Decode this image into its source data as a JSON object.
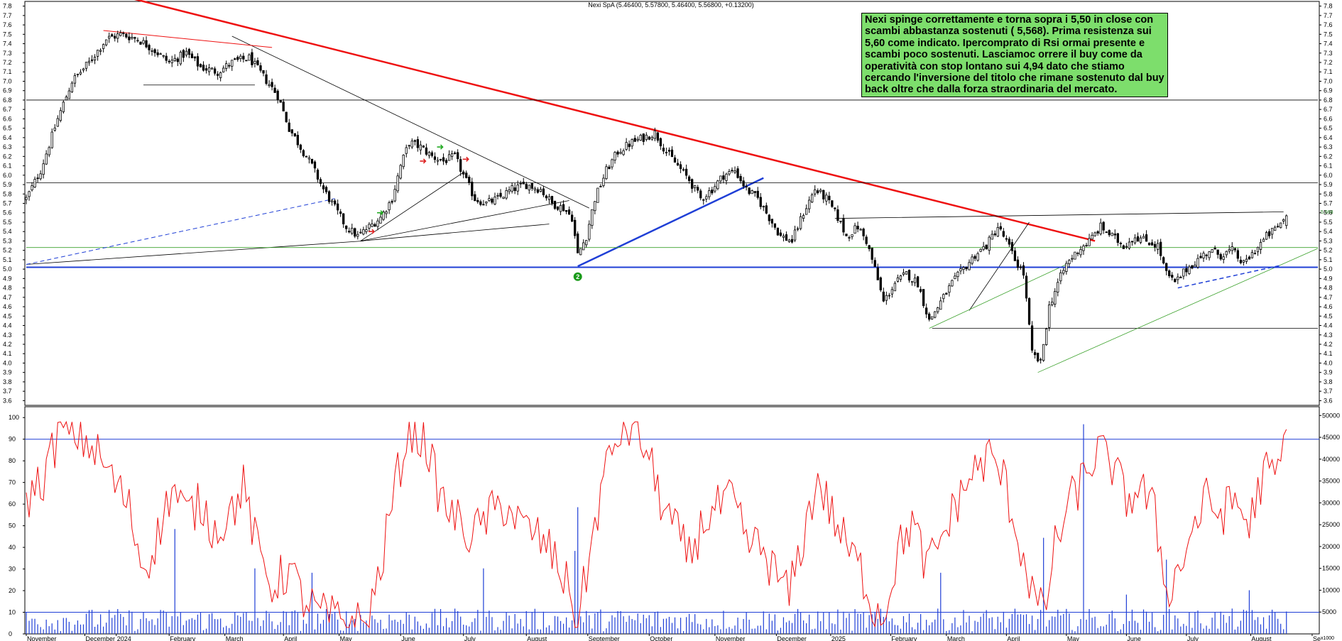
{
  "chart_data": {
    "type": "candlestick",
    "title": "Nexi SpA (5.46400, 5.57800, 5.46400, 5.56800, +0.13200)",
    "annotation": "Nexi spinge correttamente e torna sopra i 5,50 in close con scambi abbastanza sostenuti ( 5,568). Prima resistenza sui 5,60 come indicato. Ipercomprato di Rsi ormai presente e scambi poco sostenuti. Lasciamoc orrere il buy come da operatività con stop lontano sui 4,94 dato che stiamo cercando l'inversione del titolo che rimane sostenuto dal buy back oltre che dalla forza straordinaria del mercato.",
    "marker": "2",
    "last_price_label": "5.568",
    "price_axis": {
      "ylim": [
        3.55,
        7.85
      ],
      "ticks": [
        "3.6",
        "3.7",
        "3.8",
        "3.9",
        "4.0",
        "4.1",
        "4.2",
        "4.3",
        "4.4",
        "4.5",
        "4.6",
        "4.7",
        "4.8",
        "4.9",
        "5.0",
        "5.1",
        "5.2",
        "5.3",
        "5.4",
        "5.5",
        "5.6",
        "5.7",
        "5.8",
        "5.9",
        "6.0",
        "6.1",
        "6.2",
        "6.3",
        "6.4",
        "6.5",
        "6.6",
        "6.7",
        "6.8",
        "6.9",
        "7.0",
        "7.1",
        "7.2",
        "7.3",
        "7.4",
        "7.5",
        "7.6",
        "7.7",
        "7.8"
      ]
    },
    "rsi_axis": {
      "ylim": [
        0,
        105
      ],
      "ticks": [
        "0",
        "10",
        "20",
        "30",
        "40",
        "50",
        "60",
        "70",
        "80",
        "90",
        "100"
      ]
    },
    "volume_axis": {
      "ylim": [
        0,
        52000
      ],
      "ticks": [
        "50000",
        "45000",
        "40000",
        "35000",
        "30000",
        "25000",
        "20000",
        "15000",
        "10000",
        "5000"
      ],
      "unit_label": "x1000"
    },
    "x_labels": [
      "November",
      "December",
      "2024",
      "February",
      "March",
      "April",
      "May",
      "June",
      "July",
      "August",
      "September",
      "October",
      "November",
      "December",
      "2025",
      "February",
      "March",
      "April",
      "May",
      "June",
      "July",
      "August",
      "Se"
    ],
    "price_anchors": [
      [
        0,
        5.75
      ],
      [
        5,
        6.05
      ],
      [
        11,
        6.6
      ],
      [
        16,
        7.0
      ],
      [
        22,
        7.2
      ],
      [
        28,
        7.45
      ],
      [
        33,
        7.5
      ],
      [
        39,
        7.45
      ],
      [
        44,
        7.35
      ],
      [
        50,
        7.2
      ],
      [
        56,
        7.3
      ],
      [
        61,
        7.15
      ],
      [
        67,
        7.1
      ],
      [
        72,
        7.2
      ],
      [
        78,
        7.25
      ],
      [
        83,
        7.05
      ],
      [
        88,
        6.85
      ],
      [
        92,
        6.5
      ],
      [
        96,
        6.3
      ],
      [
        100,
        6.1
      ],
      [
        104,
        5.85
      ],
      [
        108,
        5.65
      ],
      [
        112,
        5.45
      ],
      [
        116,
        5.35
      ],
      [
        120,
        5.45
      ],
      [
        124,
        5.55
      ],
      [
        128,
        5.75
      ],
      [
        131,
        6.1
      ],
      [
        134,
        6.35
      ],
      [
        138,
        6.3
      ],
      [
        142,
        6.2
      ],
      [
        146,
        6.15
      ],
      [
        150,
        6.2
      ],
      [
        153,
        6.0
      ],
      [
        157,
        5.75
      ],
      [
        161,
        5.7
      ],
      [
        165,
        5.75
      ],
      [
        170,
        5.85
      ],
      [
        175,
        5.9
      ],
      [
        180,
        5.85
      ],
      [
        184,
        5.7
      ],
      [
        188,
        5.65
      ],
      [
        191,
        5.55
      ],
      [
        193,
        5.15
      ],
      [
        196,
        5.35
      ],
      [
        199,
        5.75
      ],
      [
        203,
        6.05
      ],
      [
        207,
        6.25
      ],
      [
        212,
        6.35
      ],
      [
        216,
        6.4
      ],
      [
        220,
        6.45
      ],
      [
        224,
        6.25
      ],
      [
        228,
        6.1
      ],
      [
        232,
        5.95
      ],
      [
        236,
        5.75
      ],
      [
        240,
        5.85
      ],
      [
        244,
        6.0
      ],
      [
        248,
        6.05
      ],
      [
        252,
        5.85
      ],
      [
        256,
        5.75
      ],
      [
        260,
        5.55
      ],
      [
        264,
        5.35
      ],
      [
        268,
        5.3
      ],
      [
        272,
        5.6
      ],
      [
        276,
        5.85
      ],
      [
        280,
        5.75
      ],
      [
        284,
        5.55
      ],
      [
        287,
        5.35
      ],
      [
        291,
        5.45
      ],
      [
        294,
        5.3
      ],
      [
        297,
        5.0
      ],
      [
        300,
        4.65
      ],
      [
        304,
        4.85
      ],
      [
        308,
        4.95
      ],
      [
        312,
        4.85
      ],
      [
        316,
        4.45
      ],
      [
        320,
        4.65
      ],
      [
        324,
        4.85
      ],
      [
        328,
        5.0
      ],
      [
        332,
        5.15
      ],
      [
        336,
        5.25
      ],
      [
        340,
        5.45
      ],
      [
        343,
        5.3
      ],
      [
        346,
        5.1
      ],
      [
        349,
        4.95
      ],
      [
        352,
        4.1
      ],
      [
        355,
        4.0
      ],
      [
        358,
        4.6
      ],
      [
        361,
        4.85
      ],
      [
        364,
        5.05
      ],
      [
        368,
        5.2
      ],
      [
        372,
        5.3
      ],
      [
        376,
        5.45
      ],
      [
        380,
        5.35
      ],
      [
        384,
        5.25
      ],
      [
        388,
        5.35
      ],
      [
        392,
        5.3
      ],
      [
        396,
        5.25
      ],
      [
        399,
        4.95
      ],
      [
        402,
        4.85
      ],
      [
        406,
        5.0
      ],
      [
        410,
        5.1
      ],
      [
        414,
        5.2
      ],
      [
        418,
        5.15
      ],
      [
        422,
        5.2
      ],
      [
        426,
        5.05
      ],
      [
        430,
        5.2
      ],
      [
        434,
        5.35
      ],
      [
        438,
        5.45
      ],
      [
        441,
        5.568
      ]
    ],
    "lines": [
      {
        "name": "red-downtrend",
        "color": "#ee1111",
        "width": 2.5,
        "points": [
          [
            28,
            7.95
          ],
          [
            374,
            5.3
          ]
        ]
      },
      {
        "name": "black-downtrend",
        "color": "#000000",
        "width": 0.8,
        "points": [
          [
            72,
            7.48
          ],
          [
            197,
            5.65
          ]
        ]
      },
      {
        "name": "red-short-trend",
        "color": "#ee1111",
        "width": 1,
        "points": [
          [
            27,
            7.54
          ],
          [
            86,
            7.36
          ]
        ]
      },
      {
        "name": "double-top-base",
        "color": "#000000",
        "width": 0.8,
        "points": [
          [
            41,
            6.96
          ],
          [
            80,
            6.96
          ]
        ]
      },
      {
        "name": "long-support-2023",
        "color": "#000000",
        "width": 0.8,
        "points": [
          [
            0,
            5.05
          ],
          [
            118,
            5.3
          ]
        ]
      },
      {
        "name": "fan-1",
        "color": "#000000",
        "width": 0.8,
        "points": [
          [
            117,
            5.3
          ],
          [
            183,
            5.48
          ]
        ]
      },
      {
        "name": "fan-2",
        "color": "#000000",
        "width": 0.8,
        "points": [
          [
            117,
            5.3
          ],
          [
            190,
            5.73
          ]
        ]
      },
      {
        "name": "fan-3",
        "color": "#000000",
        "width": 0.8,
        "points": [
          [
            117,
            5.3
          ],
          [
            153,
            6.03
          ]
        ]
      },
      {
        "name": "blue-rising-trend",
        "color": "#1f3fd6",
        "width": 2.5,
        "points": [
          [
            193,
            5.03
          ],
          [
            258,
            5.97
          ]
        ]
      },
      {
        "name": "resistance-5.55",
        "color": "#000000",
        "width": 0.8,
        "points": [
          [
            283,
            5.54
          ],
          [
            440,
            5.61
          ]
        ]
      },
      {
        "name": "support-4.37",
        "color": "#000000",
        "width": 0.8,
        "points": [
          [
            317,
            4.37
          ],
          [
            452,
            4.37
          ]
        ]
      },
      {
        "name": "feb-up-line",
        "color": "#000000",
        "width": 0.8,
        "points": [
          [
            330,
            4.56
          ],
          [
            351,
            5.5
          ]
        ]
      },
      {
        "name": "green-feb-trend",
        "color": "#3aa12a",
        "width": 0.8,
        "points": [
          [
            316,
            4.37
          ],
          [
            364,
            5.05
          ]
        ]
      },
      {
        "name": "green-apr-trend",
        "color": "#3aa12a",
        "width": 0.8,
        "points": [
          [
            354,
            3.9
          ],
          [
            452,
            5.22
          ]
        ]
      },
      {
        "name": "hline-6.8",
        "color": "#000000",
        "width": 0.8,
        "points": [
          [
            0,
            6.8
          ],
          [
            452,
            6.8
          ]
        ]
      },
      {
        "name": "hline-5.92",
        "color": "#000000",
        "width": 0.8,
        "points": [
          [
            0,
            5.92
          ],
          [
            452,
            5.92
          ]
        ]
      },
      {
        "name": "green-hline-5.23",
        "color": "#3aa12a",
        "width": 0.8,
        "points": [
          [
            0,
            5.23
          ],
          [
            452,
            5.23
          ]
        ]
      },
      {
        "name": "blue-hline-5.02",
        "color": "#1f3fd6",
        "width": 2,
        "points": [
          [
            0,
            5.02
          ],
          [
            452,
            5.02
          ]
        ]
      },
      {
        "name": "blue-dashed-2023",
        "color": "#1f3fd6",
        "width": 1,
        "dash": true,
        "points": [
          [
            0,
            5.05
          ],
          [
            108,
            5.75
          ]
        ]
      },
      {
        "name": "blue-dashed-2025",
        "color": "#1f3fd6",
        "width": 1.5,
        "dash": true,
        "points": [
          [
            403,
            4.8
          ],
          [
            439,
            5.04
          ]
        ]
      }
    ],
    "rsi": {
      "upper_level": 90,
      "lower_level": 10,
      "anchors": [
        [
          0,
          62
        ],
        [
          6,
          72
        ],
        [
          12,
          95
        ],
        [
          18,
          92
        ],
        [
          24,
          85
        ],
        [
          30,
          72
        ],
        [
          36,
          58
        ],
        [
          41,
          30
        ],
        [
          46,
          45
        ],
        [
          51,
          68
        ],
        [
          56,
          55
        ],
        [
          61,
          60
        ],
        [
          66,
          48
        ],
        [
          71,
          55
        ],
        [
          76,
          68
        ],
        [
          81,
          38
        ],
        [
          86,
          22
        ],
        [
          92,
          30
        ],
        [
          97,
          16
        ],
        [
          102,
          10
        ],
        [
          108,
          7
        ],
        [
          114,
          6
        ],
        [
          119,
          4
        ],
        [
          124,
          30
        ],
        [
          129,
          68
        ],
        [
          134,
          95
        ],
        [
          140,
          88
        ],
        [
          145,
          62
        ],
        [
          151,
          52
        ],
        [
          156,
          45
        ],
        [
          162,
          55
        ],
        [
          168,
          60
        ],
        [
          173,
          50
        ],
        [
          179,
          45
        ],
        [
          185,
          35
        ],
        [
          190,
          20
        ],
        [
          193,
          6
        ],
        [
          197,
          35
        ],
        [
          202,
          72
        ],
        [
          207,
          92
        ],
        [
          212,
          96
        ],
        [
          217,
          85
        ],
        [
          222,
          62
        ],
        [
          227,
          48
        ],
        [
          232,
          35
        ],
        [
          237,
          52
        ],
        [
          242,
          58
        ],
        [
          247,
          62
        ],
        [
          252,
          42
        ],
        [
          257,
          40
        ],
        [
          262,
          28
        ],
        [
          267,
          18
        ],
        [
          272,
          45
        ],
        [
          277,
          72
        ],
        [
          282,
          55
        ],
        [
          288,
          38
        ],
        [
          292,
          30
        ],
        [
          296,
          14
        ],
        [
          300,
          8
        ],
        [
          305,
          38
        ],
        [
          310,
          52
        ],
        [
          315,
          30
        ],
        [
          321,
          46
        ],
        [
          326,
          62
        ],
        [
          331,
          74
        ],
        [
          337,
          82
        ],
        [
          342,
          72
        ],
        [
          347,
          45
        ],
        [
          352,
          20
        ],
        [
          356,
          8
        ],
        [
          360,
          40
        ],
        [
          365,
          60
        ],
        [
          370,
          72
        ],
        [
          375,
          85
        ],
        [
          380,
          78
        ],
        [
          385,
          62
        ],
        [
          390,
          68
        ],
        [
          395,
          55
        ],
        [
          399,
          20
        ],
        [
          403,
          28
        ],
        [
          408,
          48
        ],
        [
          413,
          62
        ],
        [
          418,
          55
        ],
        [
          423,
          62
        ],
        [
          428,
          50
        ],
        [
          433,
          75
        ],
        [
          437,
          72
        ],
        [
          441,
          90
        ]
      ]
    },
    "volume_spikes": [
      [
        52,
        24000
      ],
      [
        80,
        15000
      ],
      [
        100,
        14000
      ],
      [
        160,
        15000
      ],
      [
        192,
        19000
      ],
      [
        193,
        29000
      ],
      [
        320,
        14000
      ],
      [
        356,
        22000
      ],
      [
        370,
        48000
      ],
      [
        385,
        9000
      ],
      [
        399,
        17000
      ],
      [
        428,
        10000
      ]
    ]
  }
}
